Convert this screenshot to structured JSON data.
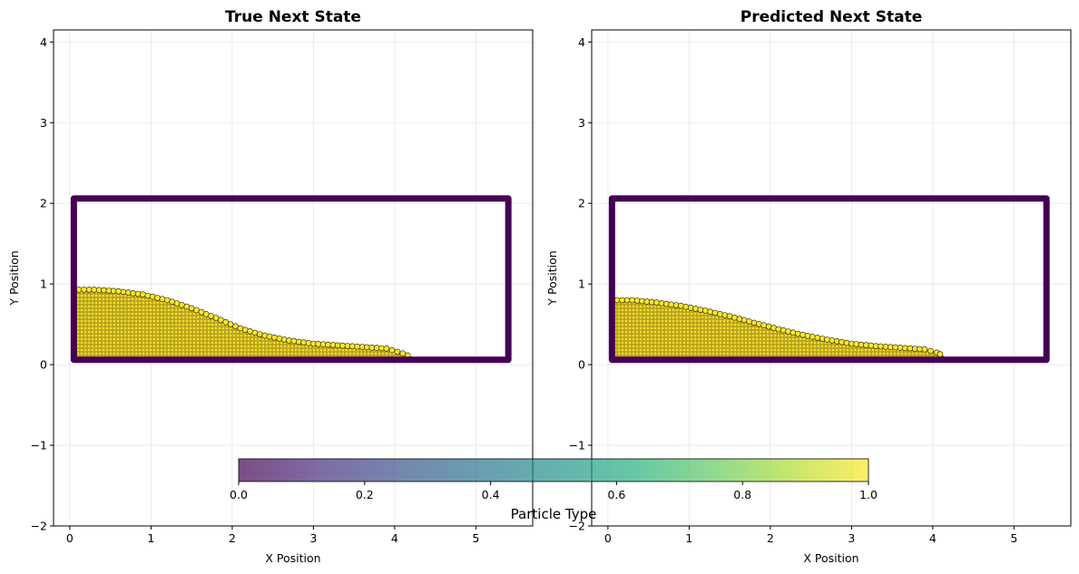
{
  "chart_data": {
    "panels": [
      {
        "type": "scatter",
        "title": "True Next State",
        "xlabel": "X Position",
        "ylabel": "Y Position",
        "xlim": [
          -0.2,
          5.7
        ],
        "ylim": [
          -2.0,
          4.15
        ],
        "xticks": [
          0,
          1,
          2,
          3,
          4,
          5
        ],
        "yticks": [
          -2,
          -1,
          0,
          1,
          2,
          3,
          4
        ],
        "grid": true,
        "boundary": {
          "x0": 0.05,
          "x1": 5.4,
          "y0": 0.06,
          "y1": 2.06,
          "type_value": 0.0
        },
        "fluid": {
          "type_value": 1.0,
          "x_min": 0.05,
          "surface": [
            [
              0.05,
              0.93
            ],
            [
              0.3,
              0.93
            ],
            [
              0.6,
              0.91
            ],
            [
              0.9,
              0.87
            ],
            [
              1.2,
              0.8
            ],
            [
              1.5,
              0.7
            ],
            [
              1.8,
              0.58
            ],
            [
              2.1,
              0.45
            ],
            [
              2.4,
              0.36
            ],
            [
              2.7,
              0.3
            ],
            [
              3.0,
              0.26
            ],
            [
              3.3,
              0.24
            ],
            [
              3.6,
              0.22
            ],
            [
              3.9,
              0.2
            ],
            [
              4.1,
              0.14
            ],
            [
              4.22,
              0.09
            ]
          ]
        }
      },
      {
        "type": "scatter",
        "title": "Predicted Next State",
        "xlabel": "X Position",
        "ylabel": "Y Position",
        "xlim": [
          -0.2,
          5.7
        ],
        "ylim": [
          -2.0,
          4.15
        ],
        "xticks": [
          0,
          1,
          2,
          3,
          4,
          5
        ],
        "yticks": [
          -2,
          -1,
          0,
          1,
          2,
          3,
          4
        ],
        "grid": true,
        "boundary": {
          "x0": 0.05,
          "x1": 5.4,
          "y0": 0.06,
          "y1": 2.06,
          "type_value": 0.0
        },
        "fluid": {
          "type_value": 1.0,
          "x_min": 0.05,
          "surface": [
            [
              0.05,
              0.8
            ],
            [
              0.3,
              0.8
            ],
            [
              0.6,
              0.77
            ],
            [
              0.9,
              0.73
            ],
            [
              1.2,
              0.67
            ],
            [
              1.5,
              0.6
            ],
            [
              1.8,
              0.52
            ],
            [
              2.1,
              0.44
            ],
            [
              2.4,
              0.37
            ],
            [
              2.7,
              0.31
            ],
            [
              3.0,
              0.26
            ],
            [
              3.3,
              0.23
            ],
            [
              3.6,
              0.21
            ],
            [
              3.9,
              0.19
            ],
            [
              4.05,
              0.15
            ],
            [
              4.13,
              0.11
            ]
          ]
        }
      }
    ],
    "colorbar": {
      "label": "Particle Type",
      "min": 0.0,
      "max": 1.0,
      "ticks": [
        "0.0",
        "0.2",
        "0.4",
        "0.6",
        "0.8",
        "1.0"
      ],
      "colormap": "viridis",
      "alpha": 0.7,
      "orientation": "horizontal"
    },
    "colors": {
      "boundary": "#440154",
      "fluid": "#fde725",
      "marker_edge": "#1a1a1a",
      "grid": "#e6e6e6"
    }
  }
}
